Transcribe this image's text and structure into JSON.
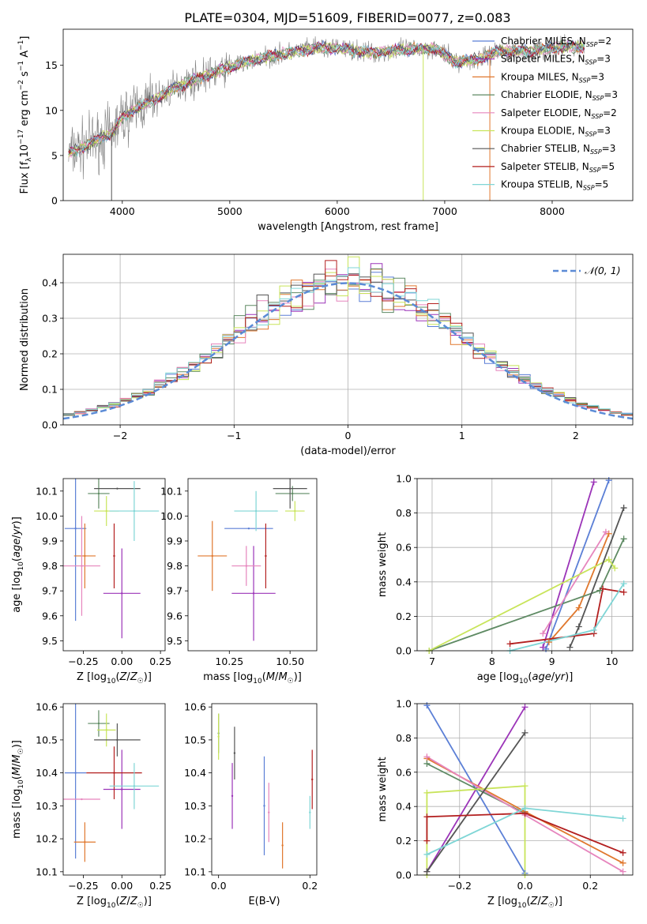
{
  "title": "PLATE=0304, MJD=51609, FIBERID=0077, z=0.083",
  "colors": {
    "Chabrier MILES": "#5b7fd6",
    "Salpeter MILES": "#9b34b8",
    "Kroupa MILES": "#e0782e",
    "Chabrier ELODIE": "#5e8a63",
    "Salpeter ELODIE": "#e685bd",
    "Kroupa ELODIE": "#c8e45a",
    "Chabrier STELIB": "#555555",
    "Salpeter STELIB": "#b31f1f",
    "Kroupa STELIB": "#7fd6d6"
  },
  "chart_data": [
    {
      "id": "spectrum",
      "type": "line",
      "xlabel": "wavelength [Angstrom, rest frame]",
      "ylabel": "Flux [f_λ 10^-17 erg cm^-2 s^-1 A^-1]",
      "xlim": [
        3450,
        8750
      ],
      "ylim": [
        0,
        19
      ],
      "xticks": [
        4000,
        5000,
        6000,
        7000,
        8000
      ],
      "yticks": [
        0,
        5,
        10,
        15
      ],
      "grid": false,
      "legend_position": "right",
      "legend": [
        {
          "model": "Chabrier MILES",
          "label": "Chabrier MILES, N",
          "sub": "SSP",
          "tail": "=2"
        },
        {
          "model": "Salpeter MILES",
          "label": "Salpeter MILES, N",
          "sub": "SSP",
          "tail": "=3"
        },
        {
          "model": "Kroupa MILES",
          "label": "Kroupa MILES, N",
          "sub": "SSP",
          "tail": "=3"
        },
        {
          "model": "Chabrier ELODIE",
          "label": "Chabrier ELODIE, N",
          "sub": "SSP",
          "tail": "=3"
        },
        {
          "model": "Salpeter ELODIE",
          "label": "Salpeter ELODIE, N",
          "sub": "SSP",
          "tail": "=2"
        },
        {
          "model": "Kroupa ELODIE",
          "label": "Kroupa ELODIE, N",
          "sub": "SSP",
          "tail": "=3"
        },
        {
          "model": "Chabrier STELIB",
          "label": "Chabrier STELIB, N",
          "sub": "SSP",
          "tail": "=3"
        },
        {
          "model": "Salpeter STELIB",
          "label": "Salpeter STELIB, N",
          "sub": "SSP",
          "tail": "=5"
        },
        {
          "model": "Kroupa STELIB",
          "label": "Kroupa STELIB, N",
          "sub": "SSP",
          "tail": "=5"
        }
      ],
      "data_color": "#808080",
      "continuum": {
        "x": [
          3500,
          3700,
          3900,
          4000,
          4100,
          4300,
          4500,
          4800,
          5000,
          5300,
          5600,
          5800,
          6000,
          6300,
          6600,
          6900,
          7100,
          7300,
          7500,
          7800,
          8100,
          8300
        ],
        "y": [
          5.2,
          6.3,
          7.5,
          9.2,
          10.0,
          11.2,
          12.6,
          14.0,
          14.8,
          15.8,
          16.5,
          16.9,
          16.9,
          16.4,
          16.7,
          16.9,
          15.4,
          15.6,
          16.6,
          16.6,
          17.0,
          17.1
        ]
      },
      "model_spikes": [
        {
          "model": "Kroupa ELODIE",
          "x": 6800,
          "y": 0
        },
        {
          "model": "Kroupa MILES",
          "x": 7420,
          "y": 0
        },
        {
          "model": "Chabrier STELIB",
          "x": 3900,
          "y": 0
        }
      ]
    },
    {
      "id": "residuals",
      "type": "line",
      "xlabel": "(data-model)/error",
      "ylabel": "Normed distribution",
      "xlim": [
        -2.5,
        2.5
      ],
      "ylim": [
        0,
        0.48
      ],
      "xticks": [
        -2,
        -1,
        0,
        1,
        2
      ],
      "yticks": [
        0.0,
        0.1,
        0.2,
        0.3,
        0.4
      ],
      "grid": true,
      "legend_position": "top-right",
      "reference": {
        "label": "𝒩(0, 1)",
        "color": "#5b8bd6",
        "mean": 0,
        "sigma": 1
      },
      "bin_width": 0.1
    },
    {
      "id": "age-metallicity",
      "type": "scatter",
      "xlabel": "Z [log10(Z/Z☉)]",
      "ylabel": "age [log10(age/yr)]",
      "xlim": [
        -0.38,
        0.28
      ],
      "ylim": [
        9.46,
        10.15
      ],
      "xticks": [
        -0.25,
        0.0,
        0.25
      ],
      "yticks": [
        9.5,
        9.6,
        9.7,
        9.8,
        9.9,
        10.0,
        10.1
      ],
      "grid": false,
      "points": [
        {
          "model": "Chabrier MILES",
          "x": -0.3,
          "y": 9.95,
          "xerr": 0.07,
          "yerr": 0.37
        },
        {
          "model": "Salpeter MILES",
          "x": 0.0,
          "y": 9.69,
          "xerr": 0.12,
          "yerr": 0.18
        },
        {
          "model": "Kroupa MILES",
          "x": -0.24,
          "y": 9.84,
          "xerr": 0.07,
          "yerr": 0.13
        },
        {
          "model": "Chabrier ELODIE",
          "x": -0.15,
          "y": 10.09,
          "xerr": 0.07,
          "yerr": 0.06
        },
        {
          "model": "Salpeter ELODIE",
          "x": -0.26,
          "y": 9.8,
          "xerr": 0.12,
          "yerr": 0.2
        },
        {
          "model": "Kroupa ELODIE",
          "x": -0.1,
          "y": 10.02,
          "xerr": 0.08,
          "yerr": 0.06
        },
        {
          "model": "Chabrier STELIB",
          "x": -0.03,
          "y": 10.11,
          "xerr": 0.15,
          "yerr": 0.0
        },
        {
          "model": "Salpeter STELIB",
          "x": -0.05,
          "y": 9.84,
          "xerr": 0.0,
          "yerr": 0.13
        },
        {
          "model": "Kroupa STELIB",
          "x": 0.08,
          "y": 10.02,
          "xerr": 0.16,
          "yerr": 0.12
        }
      ]
    },
    {
      "id": "age-mass",
      "type": "scatter",
      "xlabel": "mass [log10(M/M☉)]",
      "ylabel": "",
      "xlim": [
        10.08,
        10.61
      ],
      "ylim": [
        9.46,
        10.15
      ],
      "xticks": [
        10.25,
        10.5
      ],
      "yticks": [
        9.5,
        9.6,
        9.7,
        9.8,
        9.9,
        10.0,
        10.1
      ],
      "grid": false,
      "points": [
        {
          "model": "Chabrier MILES",
          "x": 10.33,
          "y": 9.95,
          "xerr": 0.1,
          "yerr": 0.0
        },
        {
          "model": "Salpeter MILES",
          "x": 10.35,
          "y": 9.69,
          "xerr": 0.09,
          "yerr": 0.19
        },
        {
          "model": "Kroupa MILES",
          "x": 10.18,
          "y": 9.84,
          "xerr": 0.06,
          "yerr": 0.14
        },
        {
          "model": "Chabrier ELODIE",
          "x": 10.51,
          "y": 10.09,
          "xerr": 0.07,
          "yerr": 0.03
        },
        {
          "model": "Salpeter ELODIE",
          "x": 10.32,
          "y": 9.8,
          "xerr": 0.06,
          "yerr": 0.08
        },
        {
          "model": "Kroupa ELODIE",
          "x": 10.52,
          "y": 10.02,
          "xerr": 0.04,
          "yerr": 0.04
        },
        {
          "model": "Chabrier STELIB",
          "x": 10.5,
          "y": 10.11,
          "xerr": 0.07,
          "yerr": 0.08
        },
        {
          "model": "Salpeter STELIB",
          "x": 10.4,
          "y": 9.84,
          "xerr": 0.0,
          "yerr": 0.13
        },
        {
          "model": "Kroupa STELIB",
          "x": 10.36,
          "y": 10.02,
          "xerr": 0.09,
          "yerr": 0.08
        }
      ]
    },
    {
      "id": "weight-age",
      "type": "line",
      "xlabel": "age [log10(age/yr)]",
      "ylabel": "mass weight",
      "xlim": [
        6.75,
        10.35
      ],
      "ylim": [
        0,
        1.0
      ],
      "xticks": [
        7,
        8,
        9,
        10
      ],
      "yticks": [
        0.0,
        0.2,
        0.4,
        0.6,
        0.8,
        1.0
      ],
      "grid": true,
      "series": [
        {
          "model": "Chabrier MILES",
          "x": [
            8.9,
            9.95
          ],
          "y": [
            0.01,
            0.99
          ]
        },
        {
          "model": "Salpeter MILES",
          "x": [
            8.85,
            9.7
          ],
          "y": [
            0.02,
            0.98
          ]
        },
        {
          "model": "Kroupa MILES",
          "x": [
            8.95,
            9.45,
            9.95
          ],
          "y": [
            0.05,
            0.25,
            0.68
          ]
        },
        {
          "model": "Chabrier ELODIE",
          "x": [
            6.95,
            9.8,
            10.2
          ],
          "y": [
            0.0,
            0.35,
            0.65
          ]
        },
        {
          "model": "Salpeter ELODIE",
          "x": [
            8.85,
            9.9
          ],
          "y": [
            0.1,
            0.69
          ]
        },
        {
          "model": "Kroupa ELODIE",
          "x": [
            6.95,
            9.95,
            10.05
          ],
          "y": [
            0.0,
            0.53,
            0.48
          ]
        },
        {
          "model": "Chabrier STELIB",
          "x": [
            9.3,
            9.45,
            10.2
          ],
          "y": [
            0.02,
            0.14,
            0.83
          ]
        },
        {
          "model": "Salpeter STELIB",
          "x": [
            8.3,
            9.7,
            9.85,
            10.2
          ],
          "y": [
            0.04,
            0.1,
            0.36,
            0.34
          ]
        },
        {
          "model": "Kroupa STELIB",
          "x": [
            8.3,
            9.7,
            10.2
          ],
          "y": [
            0.0,
            0.12,
            0.39
          ]
        }
      ]
    },
    {
      "id": "mass-metallicity",
      "type": "scatter",
      "xlabel": "Z [log10(Z/Z☉)]",
      "ylabel": "mass [log10(M/M☉)]",
      "xlim": [
        -0.38,
        0.28
      ],
      "ylim": [
        10.09,
        10.61
      ],
      "xticks": [
        -0.25,
        0.0,
        0.25
      ],
      "yticks": [
        10.1,
        10.2,
        10.3,
        10.4,
        10.5,
        10.6
      ],
      "grid": false,
      "points": [
        {
          "model": "Chabrier MILES",
          "x": -0.3,
          "y": 10.4,
          "xerr": 0.07,
          "yerr": 0.26
        },
        {
          "model": "Salpeter MILES",
          "x": 0.0,
          "y": 10.35,
          "xerr": 0.12,
          "yerr": 0.12
        },
        {
          "model": "Kroupa MILES",
          "x": -0.24,
          "y": 10.19,
          "xerr": 0.07,
          "yerr": 0.06
        },
        {
          "model": "Chabrier ELODIE",
          "x": -0.15,
          "y": 10.55,
          "xerr": 0.07,
          "yerr": 0.04
        },
        {
          "model": "Salpeter ELODIE",
          "x": -0.26,
          "y": 10.32,
          "xerr": 0.12,
          "yerr": 0.0
        },
        {
          "model": "Kroupa ELODIE",
          "x": -0.1,
          "y": 10.53,
          "xerr": 0.06,
          "yerr": 0.05
        },
        {
          "model": "Chabrier STELIB",
          "x": -0.03,
          "y": 10.5,
          "xerr": 0.15,
          "yerr": 0.05
        },
        {
          "model": "Salpeter STELIB",
          "x": -0.05,
          "y": 10.4,
          "xerr": 0.18,
          "yerr": 0.08
        },
        {
          "model": "Kroupa STELIB",
          "x": 0.08,
          "y": 10.36,
          "xerr": 0.16,
          "yerr": 0.07
        }
      ]
    },
    {
      "id": "mass-ebv",
      "type": "scatter",
      "xlabel": "E(B-V)",
      "ylabel": "",
      "xlim": [
        -0.015,
        0.215
      ],
      "ylim": [
        10.09,
        10.61
      ],
      "xticks": [
        0.0,
        0.2
      ],
      "yticks": [
        10.1,
        10.2,
        10.3,
        10.4,
        10.5,
        10.6
      ],
      "grid": false,
      "points": [
        {
          "model": "Chabrier MILES",
          "x": 0.1,
          "y": 10.3,
          "xerr": 0,
          "yerr": 0.15
        },
        {
          "model": "Salpeter MILES",
          "x": 0.03,
          "y": 10.33,
          "xerr": 0,
          "yerr": 0.1
        },
        {
          "model": "Kroupa MILES",
          "x": 0.14,
          "y": 10.18,
          "xerr": 0,
          "yerr": 0.07
        },
        {
          "model": "Chabrier ELODIE",
          "x": 0.0,
          "y": 10.52,
          "xerr": 0,
          "yerr": 0.06
        },
        {
          "model": "Salpeter ELODIE",
          "x": 0.11,
          "y": 10.28,
          "xerr": 0,
          "yerr": 0.09
        },
        {
          "model": "Kroupa ELODIE",
          "x": 0.0,
          "y": 10.51,
          "xerr": 0,
          "yerr": 0.07
        },
        {
          "model": "Chabrier STELIB",
          "x": 0.035,
          "y": 10.46,
          "xerr": 0,
          "yerr": 0.08
        },
        {
          "model": "Salpeter STELIB",
          "x": 0.205,
          "y": 10.38,
          "xerr": 0,
          "yerr": 0.09
        },
        {
          "model": "Kroupa STELIB",
          "x": 0.2,
          "y": 10.28,
          "xerr": 0,
          "yerr": 0.05
        }
      ]
    },
    {
      "id": "weight-metallicity",
      "type": "line",
      "xlabel": "Z [log10(Z/Z☉)]",
      "ylabel": "mass weight",
      "xlim": [
        -0.33,
        0.33
      ],
      "ylim": [
        0,
        1.0
      ],
      "xticks": [
        -0.2,
        0.0,
        0.2
      ],
      "yticks": [
        0.0,
        0.2,
        0.4,
        0.6,
        0.8,
        1.0
      ],
      "grid": true,
      "series": [
        {
          "model": "Chabrier MILES",
          "x": [
            -0.3,
            0.0
          ],
          "y": [
            0.99,
            0.01
          ]
        },
        {
          "model": "Salpeter MILES",
          "x": [
            -0.3,
            0.0
          ],
          "y": [
            0.02,
            0.98
          ]
        },
        {
          "model": "Kroupa MILES",
          "x": [
            -0.3,
            0.0,
            0.3
          ],
          "y": [
            0.68,
            0.37,
            0.07
          ]
        },
        {
          "model": "Chabrier ELODIE",
          "x": [
            -0.3,
            0.0
          ],
          "y": [
            0.65,
            0.36
          ]
        },
        {
          "model": "Salpeter ELODIE",
          "x": [
            -0.3,
            0.0,
            0.3
          ],
          "y": [
            0.69,
            0.35,
            0.02
          ]
        },
        {
          "model": "Kroupa ELODIE",
          "x": [
            -0.3,
            -0.3,
            0.0,
            0.0
          ],
          "y": [
            0.0,
            0.48,
            0.52,
            0.0
          ]
        },
        {
          "model": "Chabrier STELIB",
          "x": [
            -0.3,
            0.0
          ],
          "y": [
            0.02,
            0.83
          ]
        },
        {
          "model": "Salpeter STELIB",
          "x": [
            -0.3,
            -0.3,
            0.0,
            0.3
          ],
          "y": [
            0.2,
            0.34,
            0.36,
            0.13
          ]
        },
        {
          "model": "Kroupa STELIB",
          "x": [
            -0.3,
            0.0,
            0.3
          ],
          "y": [
            0.12,
            0.39,
            0.33
          ]
        }
      ]
    }
  ]
}
